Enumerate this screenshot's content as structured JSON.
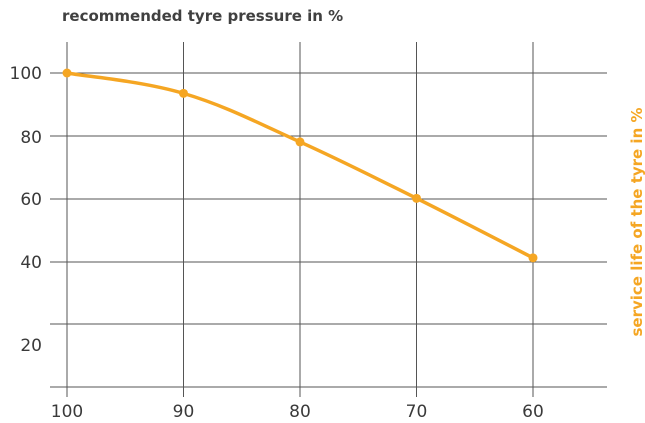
{
  "chart_data": {
    "type": "line",
    "title": "recommended tyre pressure in %",
    "xlabel": "",
    "ylabel": "service life of the tyre in %",
    "x": [
      100,
      90,
      80,
      70,
      60
    ],
    "x_ticks": [
      "100",
      "90",
      "80",
      "70",
      "60"
    ],
    "xlim": [
      100,
      55
    ],
    "y_ticks_labeled": [
      "100",
      "80",
      "60",
      "40",
      "20"
    ],
    "y_ticks": [
      100,
      80,
      60,
      40,
      20
    ],
    "ylim": [
      5,
      109
    ],
    "grid": true,
    "series": [
      {
        "values": [
          100,
          93.5,
          78,
          60,
          41
        ]
      }
    ],
    "colors": {
      "series": "#f5a623",
      "axis_label": "#f5a623",
      "grid": "#555555",
      "text": "#3a3a3a"
    }
  }
}
